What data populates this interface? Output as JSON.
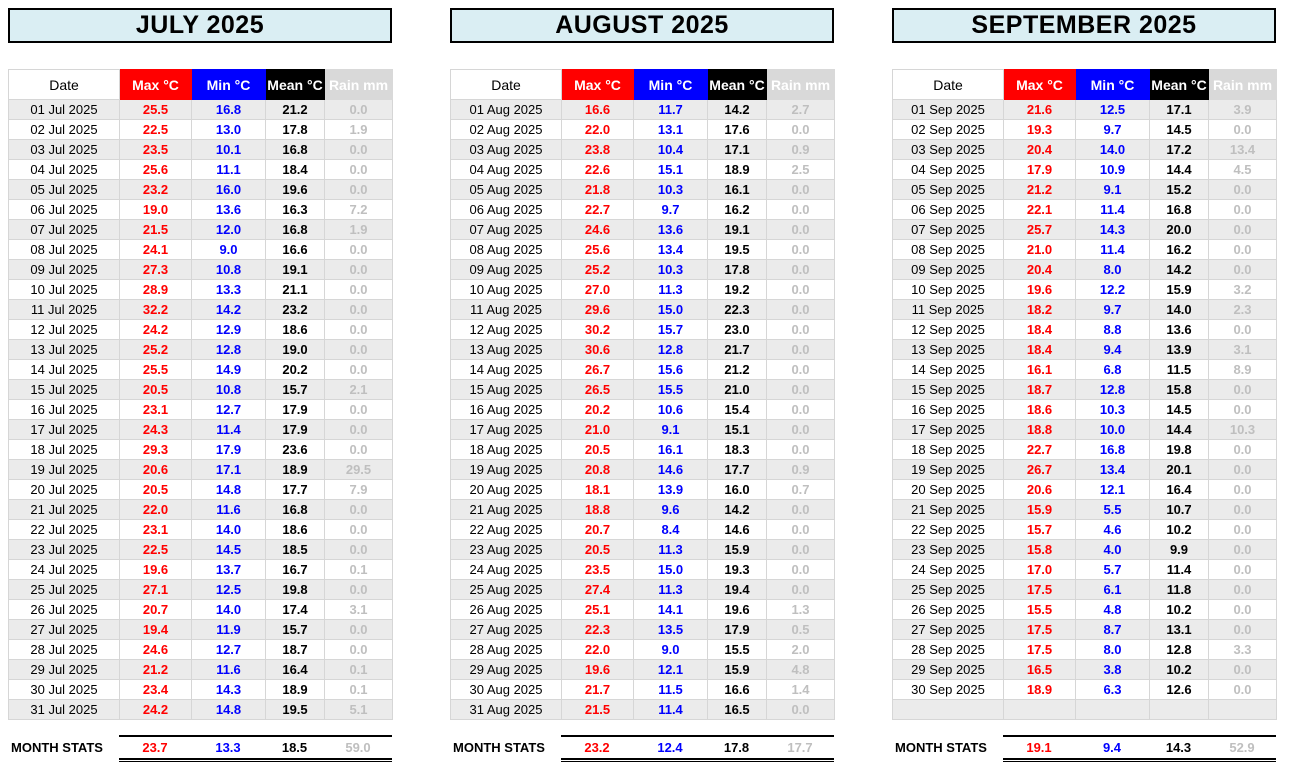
{
  "table_headers": [
    "Date",
    "Max °C",
    "Min °C",
    "Mean °C",
    "Rain mm"
  ],
  "stats_label": "MONTH STATS",
  "colors": {
    "title_bg": "#daeef3",
    "max": "#ff0000",
    "min": "#0000ff",
    "mean": "#000000",
    "rain_header_bg": "#d9d9d9",
    "rain_text": "#bfbfbf",
    "row_stripe": "#ebebeb"
  },
  "months": [
    {
      "title": "JULY 2025",
      "rows": [
        [
          "01 Jul 2025",
          "25.5",
          "16.8",
          "21.2",
          "0.0"
        ],
        [
          "02 Jul 2025",
          "22.5",
          "13.0",
          "17.8",
          "1.9"
        ],
        [
          "03 Jul 2025",
          "23.5",
          "10.1",
          "16.8",
          "0.0"
        ],
        [
          "04 Jul 2025",
          "25.6",
          "11.1",
          "18.4",
          "0.0"
        ],
        [
          "05 Jul 2025",
          "23.2",
          "16.0",
          "19.6",
          "0.0"
        ],
        [
          "06 Jul 2025",
          "19.0",
          "13.6",
          "16.3",
          "7.2"
        ],
        [
          "07 Jul 2025",
          "21.5",
          "12.0",
          "16.8",
          "1.9"
        ],
        [
          "08 Jul 2025",
          "24.1",
          "9.0",
          "16.6",
          "0.0"
        ],
        [
          "09 Jul 2025",
          "27.3",
          "10.8",
          "19.1",
          "0.0"
        ],
        [
          "10 Jul 2025",
          "28.9",
          "13.3",
          "21.1",
          "0.0"
        ],
        [
          "11 Jul 2025",
          "32.2",
          "14.2",
          "23.2",
          "0.0"
        ],
        [
          "12 Jul 2025",
          "24.2",
          "12.9",
          "18.6",
          "0.0"
        ],
        [
          "13 Jul 2025",
          "25.2",
          "12.8",
          "19.0",
          "0.0"
        ],
        [
          "14 Jul 2025",
          "25.5",
          "14.9",
          "20.2",
          "0.0"
        ],
        [
          "15 Jul 2025",
          "20.5",
          "10.8",
          "15.7",
          "2.1"
        ],
        [
          "16 Jul 2025",
          "23.1",
          "12.7",
          "17.9",
          "0.0"
        ],
        [
          "17 Jul 2025",
          "24.3",
          "11.4",
          "17.9",
          "0.0"
        ],
        [
          "18 Jul 2025",
          "29.3",
          "17.9",
          "23.6",
          "0.0"
        ],
        [
          "19 Jul 2025",
          "20.6",
          "17.1",
          "18.9",
          "29.5"
        ],
        [
          "20 Jul 2025",
          "20.5",
          "14.8",
          "17.7",
          "7.9"
        ],
        [
          "21 Jul 2025",
          "22.0",
          "11.6",
          "16.8",
          "0.0"
        ],
        [
          "22 Jul 2025",
          "23.1",
          "14.0",
          "18.6",
          "0.0"
        ],
        [
          "23 Jul 2025",
          "22.5",
          "14.5",
          "18.5",
          "0.0"
        ],
        [
          "24 Jul 2025",
          "19.6",
          "13.7",
          "16.7",
          "0.1"
        ],
        [
          "25 Jul 2025",
          "27.1",
          "12.5",
          "19.8",
          "0.0"
        ],
        [
          "26 Jul 2025",
          "20.7",
          "14.0",
          "17.4",
          "3.1"
        ],
        [
          "27 Jul 2025",
          "19.4",
          "11.9",
          "15.7",
          "0.0"
        ],
        [
          "28 Jul 2025",
          "24.6",
          "12.7",
          "18.7",
          "0.0"
        ],
        [
          "29 Jul 2025",
          "21.2",
          "11.6",
          "16.4",
          "0.1"
        ],
        [
          "30 Jul 2025",
          "23.4",
          "14.3",
          "18.9",
          "0.1"
        ],
        [
          "31 Jul 2025",
          "24.2",
          "14.8",
          "19.5",
          "5.1"
        ]
      ],
      "stats": [
        "23.7",
        "13.3",
        "18.5",
        "59.0"
      ]
    },
    {
      "title": "AUGUST 2025",
      "rows": [
        [
          "01 Aug 2025",
          "16.6",
          "11.7",
          "14.2",
          "2.7"
        ],
        [
          "02 Aug 2025",
          "22.0",
          "13.1",
          "17.6",
          "0.0"
        ],
        [
          "03 Aug 2025",
          "23.8",
          "10.4",
          "17.1",
          "0.9"
        ],
        [
          "04 Aug 2025",
          "22.6",
          "15.1",
          "18.9",
          "2.5"
        ],
        [
          "05 Aug 2025",
          "21.8",
          "10.3",
          "16.1",
          "0.0"
        ],
        [
          "06 Aug 2025",
          "22.7",
          "9.7",
          "16.2",
          "0.0"
        ],
        [
          "07 Aug 2025",
          "24.6",
          "13.6",
          "19.1",
          "0.0"
        ],
        [
          "08 Aug 2025",
          "25.6",
          "13.4",
          "19.5",
          "0.0"
        ],
        [
          "09 Aug 2025",
          "25.2",
          "10.3",
          "17.8",
          "0.0"
        ],
        [
          "10 Aug 2025",
          "27.0",
          "11.3",
          "19.2",
          "0.0"
        ],
        [
          "11 Aug 2025",
          "29.6",
          "15.0",
          "22.3",
          "0.0"
        ],
        [
          "12 Aug 2025",
          "30.2",
          "15.7",
          "23.0",
          "0.0"
        ],
        [
          "13 Aug 2025",
          "30.6",
          "12.8",
          "21.7",
          "0.0"
        ],
        [
          "14 Aug 2025",
          "26.7",
          "15.6",
          "21.2",
          "0.0"
        ],
        [
          "15 Aug 2025",
          "26.5",
          "15.5",
          "21.0",
          "0.0"
        ],
        [
          "16 Aug 2025",
          "20.2",
          "10.6",
          "15.4",
          "0.0"
        ],
        [
          "17 Aug 2025",
          "21.0",
          "9.1",
          "15.1",
          "0.0"
        ],
        [
          "18 Aug 2025",
          "20.5",
          "16.1",
          "18.3",
          "0.0"
        ],
        [
          "19 Aug 2025",
          "20.8",
          "14.6",
          "17.7",
          "0.9"
        ],
        [
          "20 Aug 2025",
          "18.1",
          "13.9",
          "16.0",
          "0.7"
        ],
        [
          "21 Aug 2025",
          "18.8",
          "9.6",
          "14.2",
          "0.0"
        ],
        [
          "22 Aug 2025",
          "20.7",
          "8.4",
          "14.6",
          "0.0"
        ],
        [
          "23 Aug 2025",
          "20.5",
          "11.3",
          "15.9",
          "0.0"
        ],
        [
          "24 Aug 2025",
          "23.5",
          "15.0",
          "19.3",
          "0.0"
        ],
        [
          "25 Aug 2025",
          "27.4",
          "11.3",
          "19.4",
          "0.0"
        ],
        [
          "26 Aug 2025",
          "25.1",
          "14.1",
          "19.6",
          "1.3"
        ],
        [
          "27 Aug 2025",
          "22.3",
          "13.5",
          "17.9",
          "0.5"
        ],
        [
          "28 Aug 2025",
          "22.0",
          "9.0",
          "15.5",
          "2.0"
        ],
        [
          "29 Aug 2025",
          "19.6",
          "12.1",
          "15.9",
          "4.8"
        ],
        [
          "30 Aug 2025",
          "21.7",
          "11.5",
          "16.6",
          "1.4"
        ],
        [
          "31 Aug 2025",
          "21.5",
          "11.4",
          "16.5",
          "0.0"
        ]
      ],
      "stats": [
        "23.2",
        "12.4",
        "17.8",
        "17.7"
      ]
    },
    {
      "title": "SEPTEMBER 2025",
      "rows": [
        [
          "01 Sep 2025",
          "21.6",
          "12.5",
          "17.1",
          "3.9"
        ],
        [
          "02 Sep 2025",
          "19.3",
          "9.7",
          "14.5",
          "0.0"
        ],
        [
          "03 Sep 2025",
          "20.4",
          "14.0",
          "17.2",
          "13.4"
        ],
        [
          "04 Sep 2025",
          "17.9",
          "10.9",
          "14.4",
          "4.5"
        ],
        [
          "05 Sep 2025",
          "21.2",
          "9.1",
          "15.2",
          "0.0"
        ],
        [
          "06 Sep 2025",
          "22.1",
          "11.4",
          "16.8",
          "0.0"
        ],
        [
          "07 Sep 2025",
          "25.7",
          "14.3",
          "20.0",
          "0.0"
        ],
        [
          "08 Sep 2025",
          "21.0",
          "11.4",
          "16.2",
          "0.0"
        ],
        [
          "09 Sep 2025",
          "20.4",
          "8.0",
          "14.2",
          "0.0"
        ],
        [
          "10 Sep 2025",
          "19.6",
          "12.2",
          "15.9",
          "3.2"
        ],
        [
          "11 Sep 2025",
          "18.2",
          "9.7",
          "14.0",
          "2.3"
        ],
        [
          "12 Sep 2025",
          "18.4",
          "8.8",
          "13.6",
          "0.0"
        ],
        [
          "13 Sep 2025",
          "18.4",
          "9.4",
          "13.9",
          "3.1"
        ],
        [
          "14 Sep 2025",
          "16.1",
          "6.8",
          "11.5",
          "8.9"
        ],
        [
          "15 Sep 2025",
          "18.7",
          "12.8",
          "15.8",
          "0.0"
        ],
        [
          "16 Sep 2025",
          "18.6",
          "10.3",
          "14.5",
          "0.0"
        ],
        [
          "17 Sep 2025",
          "18.8",
          "10.0",
          "14.4",
          "10.3"
        ],
        [
          "18 Sep 2025",
          "22.7",
          "16.8",
          "19.8",
          "0.0"
        ],
        [
          "19 Sep 2025",
          "26.7",
          "13.4",
          "20.1",
          "0.0"
        ],
        [
          "20 Sep 2025",
          "20.6",
          "12.1",
          "16.4",
          "0.0"
        ],
        [
          "21 Sep 2025",
          "15.9",
          "5.5",
          "10.7",
          "0.0"
        ],
        [
          "22 Sep 2025",
          "15.7",
          "4.6",
          "10.2",
          "0.0"
        ],
        [
          "23 Sep 2025",
          "15.8",
          "4.0",
          "9.9",
          "0.0"
        ],
        [
          "24 Sep 2025",
          "17.0",
          "5.7",
          "11.4",
          "0.0"
        ],
        [
          "25 Sep 2025",
          "17.5",
          "6.1",
          "11.8",
          "0.0"
        ],
        [
          "26 Sep 2025",
          "15.5",
          "4.8",
          "10.2",
          "0.0"
        ],
        [
          "27 Sep 2025",
          "17.5",
          "8.7",
          "13.1",
          "0.0"
        ],
        [
          "28 Sep 2025",
          "17.5",
          "8.0",
          "12.8",
          "3.3"
        ],
        [
          "29 Sep 2025",
          "16.5",
          "3.8",
          "10.2",
          "0.0"
        ],
        [
          "30 Sep 2025",
          "18.9",
          "6.3",
          "12.6",
          "0.0"
        ],
        [
          "",
          "",
          "",
          "",
          ""
        ]
      ],
      "stats": [
        "19.1",
        "9.4",
        "14.3",
        "52.9"
      ]
    }
  ]
}
